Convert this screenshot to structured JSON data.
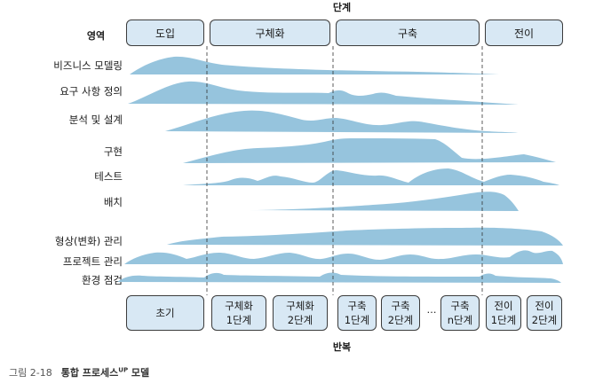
{
  "header": {
    "phases_title": "단계",
    "area_label": "영역"
  },
  "phases": [
    "도입",
    "구체화",
    "구축",
    "전이"
  ],
  "disciplines": [
    "비즈니스 모델링",
    "요구 사항 정의",
    "분석 및 설계",
    "구현",
    "테스트",
    "배치",
    "형상(변화) 관리",
    "프로젝트 관리",
    "환경 점검"
  ],
  "iterations": [
    "초기",
    "구체화\n1단계",
    "구체화\n2단계",
    "구축\n1단계",
    "구축\n2단계",
    "구축\nn단계",
    "전이\n1단계",
    "전이\n2단계"
  ],
  "ellipsis": "…",
  "footer": {
    "iterations_title": "반복"
  },
  "caption": {
    "figure_label": "그림 2-18",
    "title_main": "통합 프로세스",
    "title_sup": "UP",
    "title_tail": " 모델"
  },
  "colors": {
    "hump_fill": "#96c4dd",
    "box_fill": "#d8e8f4",
    "box_border": "#3c3c3c",
    "divider": "#333333"
  }
}
